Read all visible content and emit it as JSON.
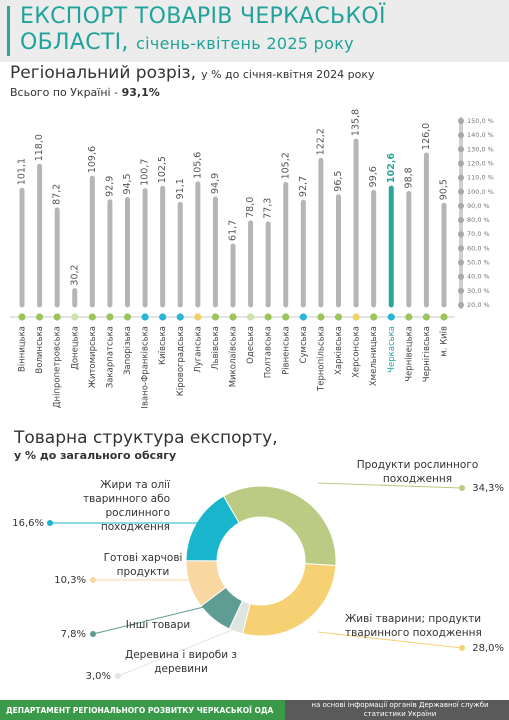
{
  "header": {
    "title": [
      "ЕКСПОРТ ТОВАРІВ ЧЕРКАСЬКОЇ",
      "ОБЛАСТІ,"
    ],
    "period": "січень-квітень 2025 року"
  },
  "chart_data": [
    {
      "type": "bar",
      "title": "Регіональний розріз,",
      "subtitle": "у % до січня-квітня 2024 року",
      "annotation": {
        "text": "Всього по Україні -",
        "highlight": "93,1%"
      },
      "categories": [
        "Вінницька",
        "Волинська",
        "Дніпропетровська",
        "Донецька",
        "Житомирська",
        "Закарпатська",
        "Запорізька",
        "Івано-Франківська",
        "Київська",
        "Кіровоградська",
        "Луганська",
        "Львівська",
        "Миколаївська",
        "Одеська",
        "Полтавська",
        "Рівненська",
        "Сумська",
        "Тернопільська",
        "Харківська",
        "Херсонська",
        "Хмельницька",
        "Черкаська",
        "Чернівецька",
        "Чернігівська",
        "м. Київ"
      ],
      "values": [
        101.1,
        118.0,
        87.2,
        30.2,
        109.6,
        92.9,
        94.5,
        100.7,
        102.5,
        91.1,
        105.6,
        94.9,
        61.7,
        78.0,
        77.3,
        105.2,
        92.7,
        122.2,
        96.5,
        135.8,
        99.6,
        102.6,
        98.8,
        126.0,
        90.5
      ],
      "value_labels": [
        "101,1",
        "118,0",
        "87,2",
        "30,2",
        "109,6",
        "92,9",
        "94,5",
        "100,7",
        "102,5",
        "91,1",
        "105,6",
        "94,9",
        "61,7",
        "78,0",
        "77,3",
        "105,2",
        "92,7",
        "122,2",
        "96,5",
        "135,8",
        "99,6",
        "102,6",
        "98,8",
        "126,0",
        "90,5"
      ],
      "colors": [
        "#b5b5b5",
        "#b5b5b5",
        "#b5b5b5",
        "#b5b5b5",
        "#b5b5b5",
        "#b5b5b5",
        "#b5b5b5",
        "#b5b5b5",
        "#b5b5b5",
        "#b5b5b5",
        "#b5b5b5",
        "#b5b5b5",
        "#b5b5b5",
        "#b5b5b5",
        "#b5b5b5",
        "#b5b5b5",
        "#b5b5b5",
        "#b5b5b5",
        "#b5b5b5",
        "#b5b5b5",
        "#b5b5b5",
        "#2aa79b",
        "#b5b5b5",
        "#b5b5b5",
        "#b5b5b5"
      ],
      "marker_colors": [
        "#9cc45a",
        "#9cc45a",
        "#9cc45a",
        "#cfe3a8",
        "#9cc45a",
        "#9cc45a",
        "#9cc45a",
        "#29b6d6",
        "#29b6d6",
        "#29b6d6",
        "#f0d264",
        "#9cc45a",
        "#9cc45a",
        "#cfe3a8",
        "#9cc45a",
        "#9cc45a",
        "#29b6d6",
        "#9cc45a",
        "#9cc45a",
        "#f0d264",
        "#9cc45a",
        "#29b6d6",
        "#9cc45a",
        "#9cc45a",
        "#9cc45a"
      ],
      "ylim": [
        20,
        150
      ],
      "yticks": [
        {
          "value": 20,
          "label": "20,0 %"
        },
        {
          "value": 30,
          "label": "30,0 %"
        },
        {
          "value": 40,
          "label": "40,0 %"
        },
        {
          "value": 50,
          "label": "50,0 %"
        },
        {
          "value": 60,
          "label": "60,0 %"
        },
        {
          "value": 70,
          "label": "70,0 %"
        },
        {
          "value": 80,
          "label": "80,0 %"
        },
        {
          "value": 90,
          "label": "90,0 %"
        },
        {
          "value": 100,
          "label": "100,0 %"
        },
        {
          "value": 110,
          "label": "110,0 %"
        },
        {
          "value": 120,
          "label": "120,0 %"
        },
        {
          "value": 130,
          "label": "130,0 %"
        },
        {
          "value": 140,
          "label": "140,0 %"
        },
        {
          "value": 150,
          "label": "150,0 %"
        }
      ]
    },
    {
      "type": "pie",
      "title": "Товарна структура експорту,",
      "subtitle": "у % до загального обсягу",
      "categories": [
        "Продукти рослинного походження",
        "Живі тварини; продукти тваринного походження",
        "Деревина і вироби з деревини",
        "Інші товари",
        "Готові харчові продукти",
        "Жири та олії тваринного або рослинного походження"
      ],
      "values": [
        34.3,
        28.0,
        3.0,
        7.8,
        10.3,
        16.6
      ],
      "value_labels": [
        "34,3%",
        "28,0%",
        "3,0%",
        "7,8%",
        "10,3%",
        "16,6%"
      ],
      "colors": [
        "#bccb84",
        "#f6d173",
        "#dfe5e1",
        "#5f9d94",
        "#f8d7a0",
        "#19b5cc"
      ]
    }
  ],
  "footer": {
    "left": "ДЕПАРТАМЕНТ РЕГІОНАЛЬНОГО РОЗВИТКУ ЧЕРКАСЬКОЇ ОДА",
    "right": "на основі інформації органів Державної служби статистики України"
  }
}
